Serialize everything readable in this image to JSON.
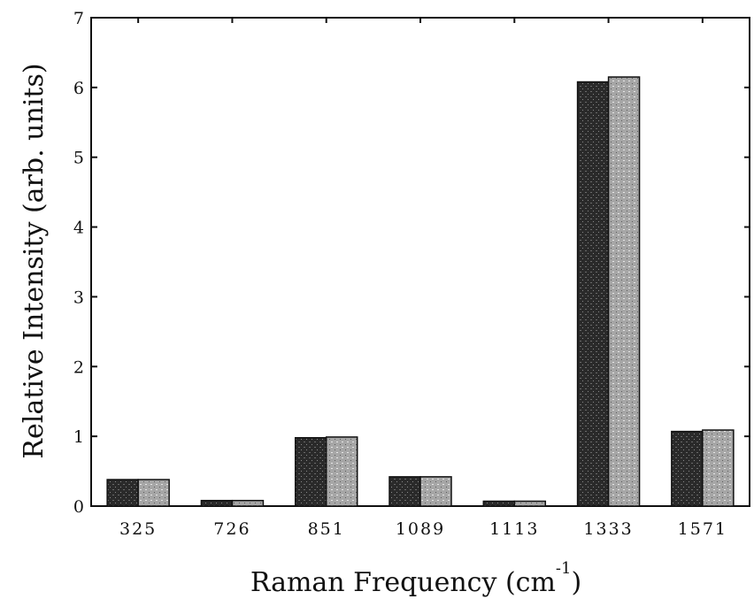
{
  "chart_data": {
    "type": "bar",
    "categories": [
      "325",
      "726",
      "851",
      "1089",
      "1113",
      "1333",
      "1571"
    ],
    "series": [
      {
        "values": [
          0.38,
          0.08,
          0.98,
          0.42,
          0.07,
          6.08,
          1.07
        ],
        "color": "#2a2a2a"
      },
      {
        "values": [
          0.38,
          0.08,
          0.99,
          0.42,
          0.07,
          6.15,
          1.09
        ],
        "color": "#9a9a9a"
      }
    ],
    "ylim": [
      0,
      7
    ],
    "yticks": [
      "0",
      "1",
      "2",
      "3",
      "4",
      "5",
      "6",
      "7"
    ],
    "xlabel": "Raman Frequency (cm",
    "xlabel_sup": "-1",
    "xlabel_close": ")",
    "ylabel": "Relative Intensity (arb. units)",
    "grid": false
  }
}
